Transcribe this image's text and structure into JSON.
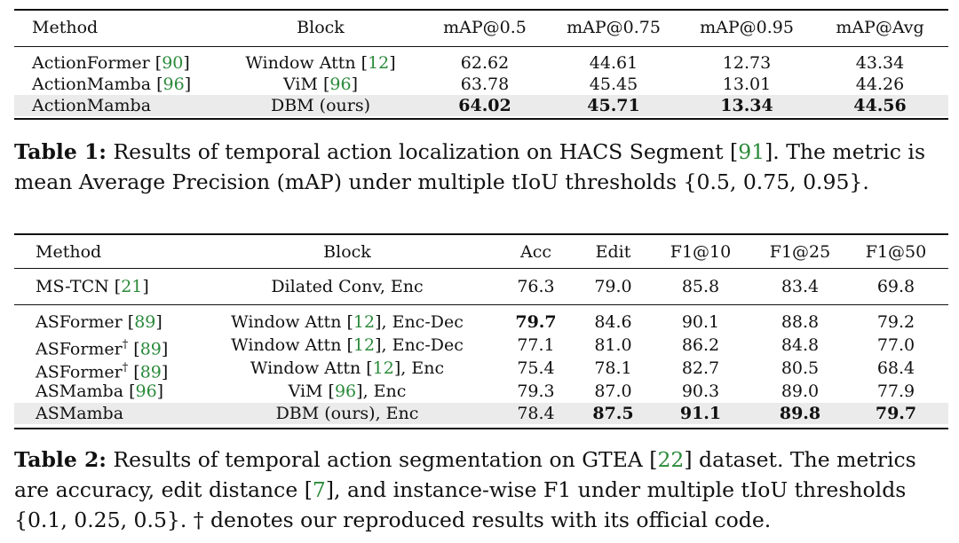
{
  "table1": {
    "headers": [
      "Method",
      "Block",
      "mAP@0.5",
      "mAP@0.75",
      "mAP@0.95",
      "mAP@Avg"
    ],
    "rows": [
      {
        "method": "ActionFormer",
        "method_cite": "90",
        "block": "Window Attn",
        "block_cite": "12",
        "block_suffix": "",
        "values": [
          "62.62",
          "44.61",
          "12.73",
          "43.34"
        ]
      },
      {
        "method": "ActionMamba",
        "method_cite": "96",
        "block": "ViM",
        "block_cite": "96",
        "block_suffix": "",
        "values": [
          "63.78",
          "45.45",
          "13.01",
          "44.26"
        ]
      },
      {
        "method": "ActionMamba",
        "method_cite": "",
        "block": "DBM (ours)",
        "block_cite": "",
        "block_suffix": "",
        "values": [
          "64.02",
          "45.71",
          "13.34",
          "44.56"
        ]
      }
    ],
    "caption_label": "Table 1:",
    "caption_part1": "Results of temporal action localization on HACS Segment [",
    "caption_cite": "91",
    "caption_part2": "]. The metric is mean Average Precision (mAP) under multiple tIoU thresholds {0.5, 0.75, 0.95}."
  },
  "table2": {
    "headers": [
      "Method",
      "Block",
      "Acc",
      "Edit",
      "F1@10",
      "F1@25",
      "F1@50"
    ],
    "rows": [
      {
        "method": "MS-TCN",
        "dagger": "",
        "method_cite": "21",
        "block": "Dilated Conv, Enc",
        "block_cite": "",
        "block_suffix": "",
        "values": [
          "76.3",
          "79.0",
          "85.8",
          "83.4",
          "69.8"
        ]
      },
      {
        "method": "ASFormer",
        "dagger": "",
        "method_cite": "89",
        "block": "Window Attn",
        "block_cite": "12",
        "block_suffix": ", Enc-Dec",
        "values": [
          "79.7",
          "84.6",
          "90.1",
          "88.8",
          "79.2"
        ]
      },
      {
        "method": "ASFormer",
        "dagger": "†",
        "method_cite": "89",
        "block": "Window Attn",
        "block_cite": "12",
        "block_suffix": ", Enc-Dec",
        "values": [
          "77.1",
          "81.0",
          "86.2",
          "84.8",
          "77.0"
        ]
      },
      {
        "method": "ASFormer",
        "dagger": "†",
        "method_cite": "89",
        "block": "Window Attn",
        "block_cite": "12",
        "block_suffix": ", Enc",
        "values": [
          "75.4",
          "78.1",
          "82.7",
          "80.5",
          "68.4"
        ]
      },
      {
        "method": "ASMamba",
        "dagger": "",
        "method_cite": "96",
        "block": "ViM",
        "block_cite": "96",
        "block_suffix": ", Enc",
        "values": [
          "79.3",
          "87.0",
          "90.3",
          "89.0",
          "77.9"
        ]
      },
      {
        "method": "ASMamba",
        "dagger": "",
        "method_cite": "",
        "block": "DBM (ours), Enc",
        "block_cite": "",
        "block_suffix": "",
        "values": [
          "78.4",
          "87.5",
          "91.1",
          "89.8",
          "79.7"
        ]
      }
    ],
    "caption_label": "Table 2:",
    "caption_part1": "Results of temporal action segmentation on GTEA [",
    "caption_cite1": "22",
    "caption_part2": "] dataset. The metrics are accuracy, edit distance [",
    "caption_cite2": "7",
    "caption_part3": "], and instance-wise F1 under multiple tIoU thresholds {0.1, 0.25, 0.5}. † denotes our reproduced results with its official code."
  }
}
